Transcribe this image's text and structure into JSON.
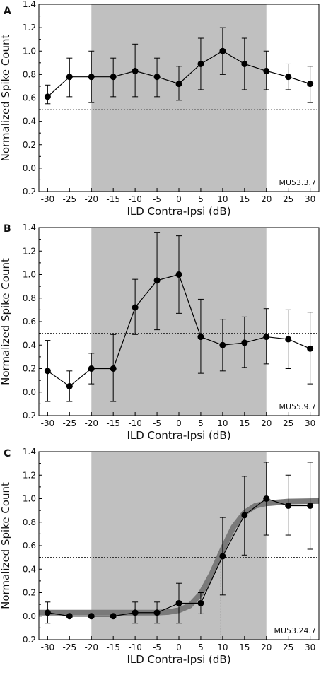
{
  "chart_data": [
    {
      "type": "line",
      "panel": "A",
      "unit_id": "MU53.3.7",
      "xlabel": "ILD Contra-Ipsi (dB)",
      "ylabel": "Normalized Spike Count",
      "xlim": [
        -32,
        32
      ],
      "ylim": [
        -0.2,
        1.4
      ],
      "xticks": [
        -30,
        -25,
        -20,
        -15,
        -10,
        -5,
        0,
        5,
        10,
        15,
        20,
        25,
        30
      ],
      "yticks": [
        "-0.2",
        "0.0",
        "0.2",
        "0.4",
        "0.6",
        "0.8",
        "1.0",
        "1.2",
        "1.4"
      ],
      "shaded_region": [
        -20,
        20
      ],
      "threshold": 0.5,
      "x": [
        -30,
        -25,
        -20,
        -15,
        -10,
        -5,
        0,
        5,
        10,
        15,
        20,
        25,
        30
      ],
      "values": [
        0.61,
        0.78,
        0.78,
        0.78,
        0.83,
        0.78,
        0.72,
        0.89,
        1.0,
        0.89,
        0.83,
        0.78,
        0.72
      ],
      "err_low": [
        0.55,
        0.61,
        0.56,
        0.61,
        0.61,
        0.61,
        0.58,
        0.67,
        0.8,
        0.67,
        0.67,
        0.67,
        0.56
      ],
      "err_high": [
        0.71,
        0.94,
        1.0,
        0.94,
        1.06,
        0.94,
        0.87,
        1.11,
        1.2,
        1.11,
        1.0,
        0.89,
        0.87
      ],
      "colors": {
        "shade": "#c0c0c0",
        "line": "#000000"
      }
    },
    {
      "type": "line",
      "panel": "B",
      "unit_id": "MU55.9.7",
      "xlabel": "ILD Contra-Ipsi (dB)",
      "ylabel": "Normalized Spike Count",
      "xlim": [
        -32,
        32
      ],
      "ylim": [
        -0.2,
        1.4
      ],
      "xticks": [
        -30,
        -25,
        -20,
        -15,
        -10,
        -5,
        0,
        5,
        10,
        15,
        20,
        25,
        30
      ],
      "yticks": [
        "-0.2",
        "0.0",
        "0.2",
        "0.4",
        "0.6",
        "0.8",
        "1.0",
        "1.2",
        "1.4"
      ],
      "shaded_region": [
        -20,
        20
      ],
      "threshold": 0.5,
      "x": [
        -30,
        -25,
        -20,
        -15,
        -10,
        -5,
        0,
        5,
        10,
        15,
        20,
        25,
        30
      ],
      "values": [
        0.18,
        0.05,
        0.2,
        0.2,
        0.72,
        0.95,
        1.0,
        0.47,
        0.4,
        0.42,
        0.47,
        0.45,
        0.37
      ],
      "err_low": [
        -0.08,
        -0.08,
        0.07,
        -0.08,
        0.49,
        0.53,
        0.67,
        0.16,
        0.18,
        0.21,
        0.24,
        0.2,
        0.07
      ],
      "err_high": [
        0.44,
        0.18,
        0.33,
        0.49,
        0.96,
        1.36,
        1.33,
        0.79,
        0.62,
        0.64,
        0.71,
        0.7,
        0.68
      ],
      "colors": {
        "shade": "#c0c0c0",
        "line": "#000000"
      }
    },
    {
      "type": "line",
      "panel": "C",
      "unit_id": "MU53.24.7",
      "xlabel": "ILD Contra-Ipsi (dB)",
      "ylabel": "Normalized Spike Count",
      "xlim": [
        -32,
        32
      ],
      "ylim": [
        -0.2,
        1.4
      ],
      "xticks": [
        -30,
        -25,
        -20,
        -15,
        -10,
        -5,
        0,
        5,
        10,
        15,
        20,
        25,
        30
      ],
      "yticks": [
        "-0.2",
        "0.0",
        "0.2",
        "0.4",
        "0.6",
        "0.8",
        "1.0",
        "1.2",
        "1.4"
      ],
      "shaded_region": [
        -20,
        20
      ],
      "threshold": 0.5,
      "threshold_crossing_x": 9.6,
      "x": [
        -30,
        -25,
        -20,
        -15,
        -10,
        -5,
        0,
        5,
        10,
        15,
        20,
        25,
        30
      ],
      "values": [
        0.03,
        0.0,
        0.0,
        0.0,
        0.03,
        0.03,
        0.11,
        0.11,
        0.51,
        0.86,
        1.0,
        0.94,
        0.94
      ],
      "err_low": [
        -0.06,
        0.0,
        0.0,
        0.0,
        -0.06,
        -0.06,
        -0.06,
        0.02,
        0.18,
        0.52,
        0.69,
        0.69,
        0.57
      ],
      "err_high": [
        0.12,
        0.0,
        0.0,
        0.0,
        0.12,
        0.12,
        0.28,
        0.2,
        0.84,
        1.19,
        1.31,
        1.2,
        1.31
      ],
      "fit": {
        "x": [
          -32,
          -25,
          -20,
          -15,
          -10,
          -5,
          -2.5,
          0,
          2.5,
          5,
          7.5,
          10,
          12.5,
          15,
          17.5,
          20,
          25,
          32
        ],
        "y": [
          0.03,
          0.03,
          0.03,
          0.03,
          0.03,
          0.03,
          0.035,
          0.05,
          0.09,
          0.19,
          0.36,
          0.57,
          0.76,
          0.88,
          0.94,
          0.96,
          0.975,
          0.98
        ]
      },
      "colors": {
        "shade": "#c0c0c0",
        "line": "#000000",
        "fit": "#7a7a7a"
      }
    }
  ]
}
